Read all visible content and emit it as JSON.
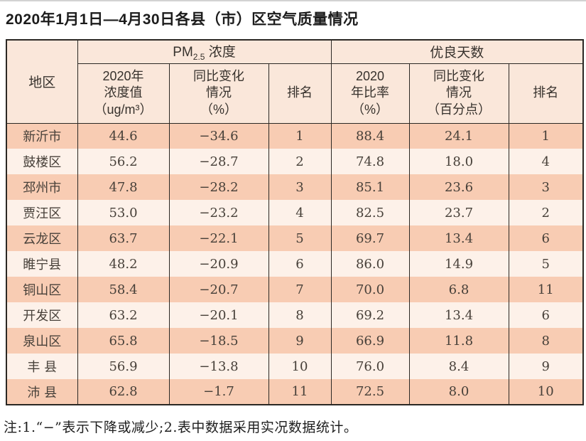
{
  "title": "2020年1月1日—4月30日各县（市）区空气质量情况",
  "footnote": "注:1.“−”表示下降或减少;2.表中数据采用实况数据统计。",
  "colors": {
    "header_bg": "#fae7da",
    "row_dark_bg": "#f8ccb3",
    "row_light_bg": "#fdf1e9",
    "border": "#2b2824",
    "cell_text": "#474039"
  },
  "table": {
    "region_header": "地区",
    "groups": {
      "pm": {
        "prefix": "PM",
        "sub": "2.5",
        "suffix": " 浓度"
      },
      "good_days": "优良天数"
    },
    "subheaders": {
      "pm_value": {
        "0": "2020年",
        "1": "浓度值",
        "2": "（ug/m³）"
      },
      "pm_change": {
        "0": "同比变化",
        "1": "情况",
        "2": "（%）"
      },
      "pm_rank": "排名",
      "good_rate": {
        "0": "2020",
        "1": "年比率",
        "2": "（%）"
      },
      "good_change": {
        "0": "同比变化",
        "1": "情况",
        "2": "（百分点）"
      },
      "good_rank": "排名"
    },
    "rows": [
      {
        "region": "新沂市",
        "pm_value": "44.6",
        "pm_change": "−34.6",
        "pm_rank": "1",
        "good_rate": "88.4",
        "good_change": "24.1",
        "good_rank": "1"
      },
      {
        "region": "鼓楼区",
        "pm_value": "56.2",
        "pm_change": "−28.7",
        "pm_rank": "2",
        "good_rate": "74.8",
        "good_change": "18.0",
        "good_rank": "4"
      },
      {
        "region": "邳州市",
        "pm_value": "47.8",
        "pm_change": "−28.2",
        "pm_rank": "3",
        "good_rate": "85.1",
        "good_change": "23.6",
        "good_rank": "3"
      },
      {
        "region": "贾汪区",
        "pm_value": "53.0",
        "pm_change": "−23.2",
        "pm_rank": "4",
        "good_rate": "82.5",
        "good_change": "23.7",
        "good_rank": "2"
      },
      {
        "region": "云龙区",
        "pm_value": "63.7",
        "pm_change": "−22.1",
        "pm_rank": "5",
        "good_rate": "69.7",
        "good_change": "13.4",
        "good_rank": "6"
      },
      {
        "region": "睢宁县",
        "pm_value": "48.2",
        "pm_change": "−20.9",
        "pm_rank": "6",
        "good_rate": "86.0",
        "good_change": "14.9",
        "good_rank": "5"
      },
      {
        "region": "铜山区",
        "pm_value": "58.4",
        "pm_change": "−20.7",
        "pm_rank": "7",
        "good_rate": "70.0",
        "good_change": "6.8",
        "good_rank": "11"
      },
      {
        "region": "开发区",
        "pm_value": "63.2",
        "pm_change": "−20.1",
        "pm_rank": "8",
        "good_rate": "69.2",
        "good_change": "13.4",
        "good_rank": "6"
      },
      {
        "region": "泉山区",
        "pm_value": "65.8",
        "pm_change": "−18.5",
        "pm_rank": "9",
        "good_rate": "66.9",
        "good_change": "11.8",
        "good_rank": "8"
      },
      {
        "region": "丰 县",
        "pm_value": "56.9",
        "pm_change": "−13.8",
        "pm_rank": "10",
        "good_rate": "76.0",
        "good_change": "8.4",
        "good_rank": "9"
      },
      {
        "region": "沛 县",
        "pm_value": "62.8",
        "pm_change": "−1.7",
        "pm_rank": "11",
        "good_rate": "72.5",
        "good_change": "8.0",
        "good_rank": "10"
      }
    ]
  }
}
